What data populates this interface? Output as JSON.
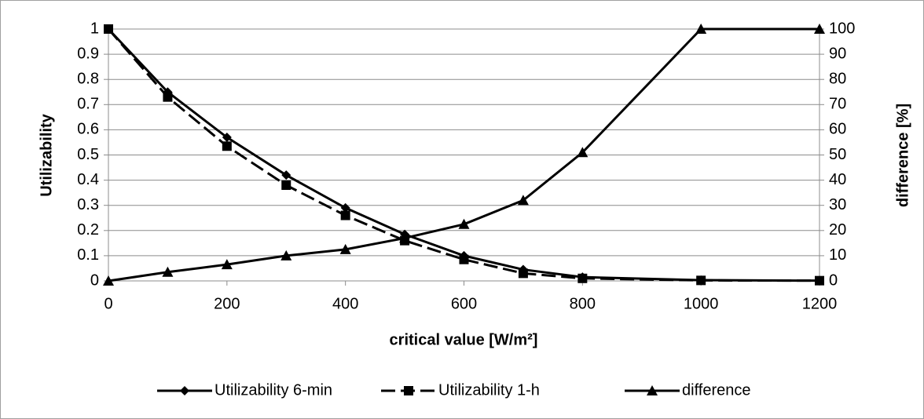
{
  "chart_data": {
    "type": "line",
    "x": [
      0,
      100,
      200,
      300,
      400,
      500,
      600,
      700,
      800,
      1000,
      1200
    ],
    "series": [
      {
        "name": "Utilizability 6-min",
        "color": "#000000",
        "marker": "diamond",
        "dashed": false,
        "values": [
          1,
          0.75,
          0.57,
          0.42,
          0.29,
          0.185,
          0.1,
          0.045,
          0.015,
          0.003,
          0.001
        ]
      },
      {
        "name": "Utilizability 1-h",
        "color": "#000000",
        "marker": "square",
        "dashed": true,
        "values": [
          1,
          0.73,
          0.535,
          0.38,
          0.26,
          0.16,
          0.085,
          0.03,
          0.01,
          0.002,
          0.001
        ]
      },
      {
        "name": "difference",
        "color": "#000000",
        "marker": "triangle",
        "dashed": false,
        "axis": "y2",
        "values": [
          0,
          3.5,
          6.5,
          10,
          12.5,
          17,
          22.5,
          32,
          51,
          100,
          100
        ]
      }
    ],
    "xlabel": "critical value [W/m²]",
    "ylabel": "Utilizability",
    "y2label": "difference [%]",
    "xlim": [
      0,
      1200
    ],
    "xticks": [
      0,
      200,
      400,
      600,
      800,
      1000,
      1200
    ],
    "ylim": [
      0,
      1
    ],
    "yticks": [
      0,
      0.1,
      0.2,
      0.3,
      0.4,
      0.5,
      0.6,
      0.7,
      0.8,
      0.9,
      1
    ],
    "y2lim": [
      0,
      100
    ],
    "y2ticks": [
      0,
      10,
      20,
      30,
      40,
      50,
      60,
      70,
      80,
      90,
      100
    ],
    "grid": true,
    "legend": "bottom"
  }
}
